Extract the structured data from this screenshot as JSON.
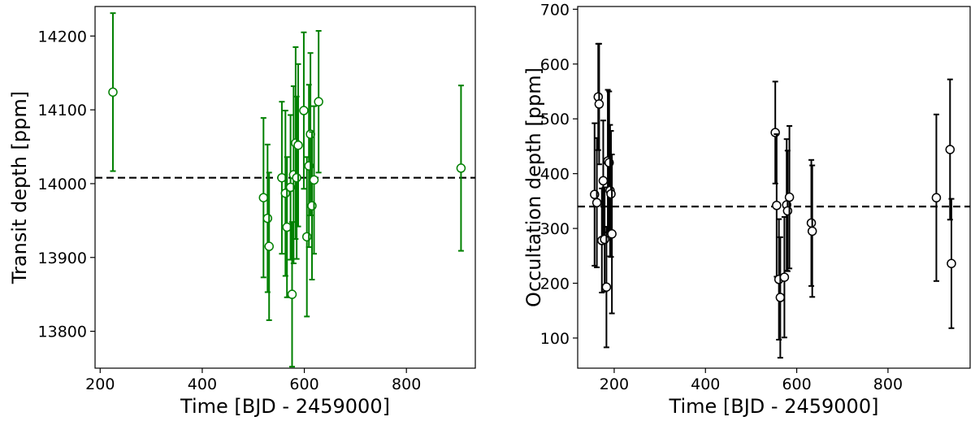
{
  "chart_data": [
    {
      "type": "scatter",
      "xlabel": "Time [BJD - 2459000]",
      "ylabel": "Transit depth [ppm]",
      "xlim": [
        190,
        935
      ],
      "ylim": [
        13750,
        14240
      ],
      "xticks": [
        200,
        400,
        600,
        800
      ],
      "yticks": [
        13800,
        13900,
        14000,
        14100,
        14200
      ],
      "grid": false,
      "color": "#008000",
      "marker_fill": "#ffffff",
      "reference_line": 14008,
      "series": [
        {
          "points": [
            {
              "x": 225,
              "y": 14124,
              "err": 107
            },
            {
              "x": 520,
              "y": 13981,
              "err": 108
            },
            {
              "x": 528,
              "y": 13953,
              "err": 100
            },
            {
              "x": 531,
              "y": 13915,
              "err": 100
            },
            {
              "x": 556,
              "y": 14008,
              "err": 103
            },
            {
              "x": 563,
              "y": 13987,
              "err": 112
            },
            {
              "x": 566,
              "y": 13941,
              "err": 95
            },
            {
              "x": 573,
              "y": 13995,
              "err": 98
            },
            {
              "x": 576,
              "y": 13850,
              "err": 98
            },
            {
              "x": 579,
              "y": 14012,
              "err": 120
            },
            {
              "x": 583,
              "y": 14055,
              "err": 130
            },
            {
              "x": 585,
              "y": 14008,
              "err": 110
            },
            {
              "x": 588,
              "y": 14052,
              "err": 110
            },
            {
              "x": 599,
              "y": 14099,
              "err": 106
            },
            {
              "x": 605,
              "y": 13928,
              "err": 108
            },
            {
              "x": 609,
              "y": 14024,
              "err": 110
            },
            {
              "x": 612,
              "y": 14067,
              "err": 110
            },
            {
              "x": 615,
              "y": 13970,
              "err": 100
            },
            {
              "x": 619,
              "y": 14005,
              "err": 100
            },
            {
              "x": 628,
              "y": 14111,
              "err": 96
            },
            {
              "x": 907,
              "y": 14021,
              "err": 112
            }
          ]
        }
      ]
    },
    {
      "type": "scatter",
      "xlabel": "Time [BJD - 2459000]",
      "ylabel": "Occultation depth [ppm]",
      "xlim": [
        120,
        980
      ],
      "ylim": [
        45,
        705
      ],
      "xticks": [
        200,
        400,
        600,
        800
      ],
      "yticks": [
        100,
        200,
        300,
        400,
        500,
        600,
        700
      ],
      "grid": false,
      "color": "#000000",
      "marker_fill": "#ffffff",
      "reference_line": 340,
      "series": [
        {
          "points": [
            {
              "x": 157,
              "y": 362,
              "err": 130
            },
            {
              "x": 162,
              "y": 347,
              "err": 118
            },
            {
              "x": 165,
              "y": 540,
              "err": 97
            },
            {
              "x": 167,
              "y": 527,
              "err": 110
            },
            {
              "x": 173,
              "y": 278,
              "err": 95
            },
            {
              "x": 176,
              "y": 387,
              "err": 110
            },
            {
              "x": 179,
              "y": 280,
              "err": 95
            },
            {
              "x": 183,
              "y": 193,
              "err": 110
            },
            {
              "x": 186,
              "y": 423,
              "err": 130
            },
            {
              "x": 189,
              "y": 420,
              "err": 130
            },
            {
              "x": 191,
              "y": 369,
              "err": 120
            },
            {
              "x": 193,
              "y": 363,
              "err": 115
            },
            {
              "x": 195,
              "y": 290,
              "err": 145
            },
            {
              "x": 553,
              "y": 475,
              "err": 93
            },
            {
              "x": 556,
              "y": 342,
              "err": 130
            },
            {
              "x": 561,
              "y": 207,
              "err": 110
            },
            {
              "x": 564,
              "y": 174,
              "err": 110
            },
            {
              "x": 573,
              "y": 211,
              "err": 110
            },
            {
              "x": 578,
              "y": 343,
              "err": 120
            },
            {
              "x": 580,
              "y": 332,
              "err": 110
            },
            {
              "x": 584,
              "y": 357,
              "err": 130
            },
            {
              "x": 632,
              "y": 310,
              "err": 115
            },
            {
              "x": 634,
              "y": 295,
              "err": 120
            },
            {
              "x": 906,
              "y": 356,
              "err": 152
            },
            {
              "x": 936,
              "y": 444,
              "err": 128
            },
            {
              "x": 939,
              "y": 236,
              "err": 118
            }
          ]
        }
      ]
    }
  ]
}
